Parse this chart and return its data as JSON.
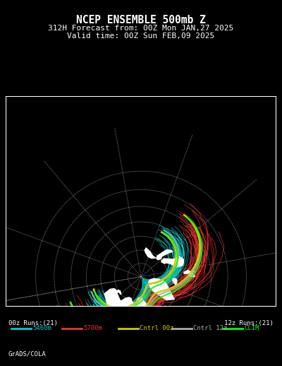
{
  "title_line1": "NCEP ENSEMBLE 500mb Z",
  "title_line2": "312H Forecast from: 00Z Mon JAN,27 2025",
  "title_line3": "Valid time: 00Z Sun FEB,09 2025",
  "label_00z": "00z Runs:(21)",
  "label_12z": "12z Runs:(21)",
  "footer": "GrADS/COLA",
  "legend_items": [
    {
      "label": "5460m",
      "color": "#00CCCC"
    },
    {
      "label": "5700m",
      "color": "#EE3333"
    },
    {
      "label": "Cntrl 00z",
      "color": "#CCCC00"
    },
    {
      "label": "Cntrl 12z",
      "color": "#AAAAAA"
    },
    {
      "label": "CLIM",
      "color": "#00FF00"
    }
  ],
  "bg_color": "#000000",
  "contour_color_cyan": "#00CCCC",
  "contour_color_red": "#EE3333",
  "contour_color_yellow": "#CCCC00",
  "contour_color_gray": "#AAAAAA",
  "contour_color_green": "#00FF00",
  "land_color": "#FFFFFF"
}
